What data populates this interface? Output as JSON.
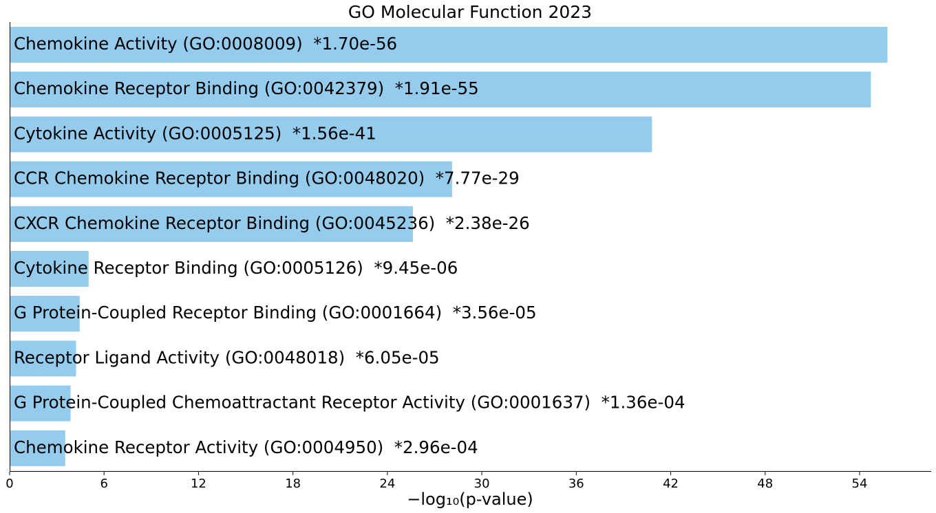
{
  "chart_data": {
    "type": "bar",
    "orientation": "horizontal",
    "title": "GO Molecular Function 2023",
    "xlabel": "−log₁₀(p-value)",
    "ylabel": "",
    "xlim": [
      0,
      58.6
    ],
    "xticks": [
      0,
      6,
      12,
      18,
      24,
      30,
      36,
      42,
      48,
      54
    ],
    "grid": false,
    "bar_color": "#95cbec",
    "bars": [
      {
        "label": "Chemokine Activity (GO:0008009)  *1.70e-56",
        "value": 55.77
      },
      {
        "label": "Chemokine Receptor Binding (GO:0042379)  *1.91e-55",
        "value": 54.72
      },
      {
        "label": "Cytokine Activity (GO:0005125)  *1.56e-41",
        "value": 40.81
      },
      {
        "label": "CCR Chemokine Receptor Binding (GO:0048020)  *7.77e-29",
        "value": 28.11
      },
      {
        "label": "CXCR Chemokine Receptor Binding (GO:0045236)  *2.38e-26",
        "value": 25.62
      },
      {
        "label": "Cytokine Receptor Binding (GO:0005126)  *9.45e-06",
        "value": 5.02
      },
      {
        "label": "G Protein-Coupled Receptor Binding (GO:0001664)  *3.56e-05",
        "value": 4.45
      },
      {
        "label": "Receptor Ligand Activity (GO:0048018)  *6.05e-05",
        "value": 4.22
      },
      {
        "label": "G Protein-Coupled Chemoattractant Receptor Activity (GO:0001637)  *1.36e-04",
        "value": 3.87
      },
      {
        "label": "Chemokine Receptor Activity (GO:0004950)  *2.96e-04",
        "value": 3.53
      }
    ]
  }
}
